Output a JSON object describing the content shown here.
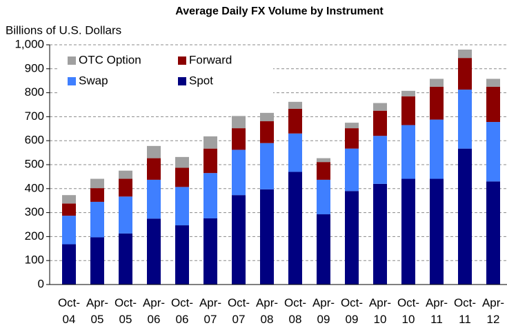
{
  "chart_data": {
    "type": "bar",
    "stacked": true,
    "title": "Average Daily FX Volume by Instrument",
    "y_label": "Billions of U.S. Dollars",
    "categories": [
      "Oct-04",
      "Apr-05",
      "Oct-05",
      "Apr-06",
      "Oct-06",
      "Apr-07",
      "Oct-07",
      "Apr-08",
      "Oct-08",
      "Apr-09",
      "Oct-09",
      "Apr-10",
      "Oct-10",
      "Apr-11",
      "Oct-11",
      "Apr-12"
    ],
    "series": [
      {
        "name": "Spot",
        "color": "#000080",
        "values": [
          168,
          197,
          213,
          275,
          247,
          276,
          373,
          397,
          470,
          293,
          390,
          420,
          441,
          441,
          567,
          430
        ]
      },
      {
        "name": "Swap",
        "color": "#3f7fff",
        "values": [
          119,
          148,
          154,
          162,
          160,
          189,
          189,
          193,
          160,
          144,
          177,
          200,
          224,
          247,
          246,
          248
        ]
      },
      {
        "name": "Forward",
        "color": "#8b0000",
        "values": [
          51,
          57,
          74,
          90,
          80,
          102,
          90,
          91,
          103,
          74,
          85,
          105,
          120,
          137,
          132,
          147
        ]
      },
      {
        "name": "OTC Option",
        "color": "#a0a0a0",
        "values": [
          35,
          39,
          34,
          51,
          45,
          51,
          51,
          35,
          29,
          16,
          23,
          32,
          23,
          33,
          35,
          33
        ]
      }
    ],
    "ylim": [
      0,
      1000
    ],
    "yticks": [
      0,
      100,
      200,
      300,
      400,
      500,
      600,
      700,
      800,
      900,
      {
        "value": 1000,
        "label": "1,000"
      }
    ],
    "grid": true,
    "legend": "upper left"
  }
}
